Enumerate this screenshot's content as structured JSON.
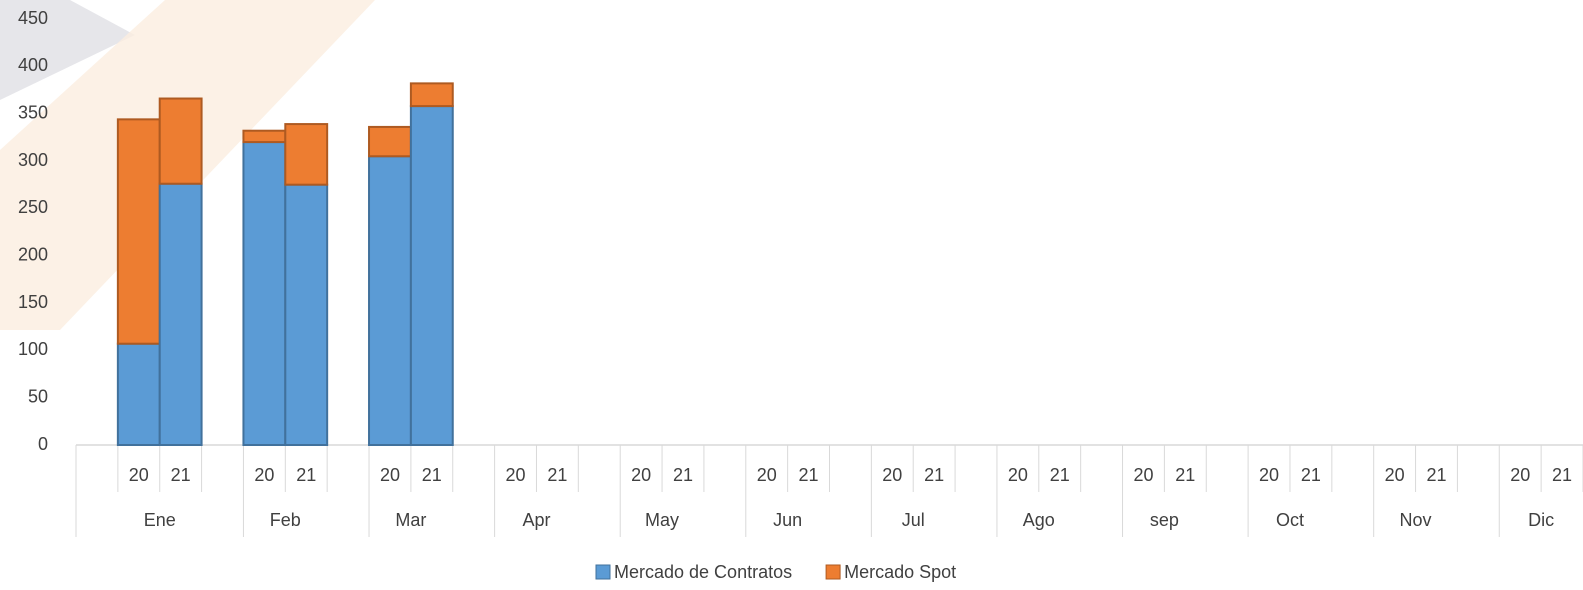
{
  "chart_data": {
    "type": "bar",
    "stacked": true,
    "groups": [
      "Ene",
      "Feb",
      "Mar",
      "Apr",
      "May",
      "Jun",
      "Jul",
      "Ago",
      "sep",
      "Oct",
      "Nov",
      "Dic"
    ],
    "categories": [
      "20",
      "21",
      "20",
      "21",
      "20",
      "21",
      "20",
      "21",
      "20",
      "21",
      "20",
      "21",
      "20",
      "21",
      "20",
      "21",
      "20",
      "21",
      "20",
      "21",
      "20",
      "21",
      "20",
      "21"
    ],
    "series": [
      {
        "name": "Mercado de Contratos",
        "color": "#5b9bd5",
        "values": [
          107,
          276,
          320,
          275,
          305,
          358,
          null,
          null,
          null,
          null,
          null,
          null,
          null,
          null,
          null,
          null,
          null,
          null,
          null,
          null,
          null,
          null,
          null,
          null
        ]
      },
      {
        "name": "Mercado Spot",
        "color": "#ed7d31",
        "values": [
          237,
          90,
          12,
          64,
          31,
          24,
          null,
          null,
          null,
          null,
          null,
          null,
          null,
          null,
          null,
          null,
          null,
          null,
          null,
          null,
          null,
          null,
          null,
          null
        ]
      }
    ],
    "ylim": [
      0,
      450
    ],
    "yticks": [
      0,
      50,
      100,
      150,
      200,
      250,
      300,
      350,
      400,
      450
    ],
    "grid": false,
    "legend": "bottom"
  }
}
